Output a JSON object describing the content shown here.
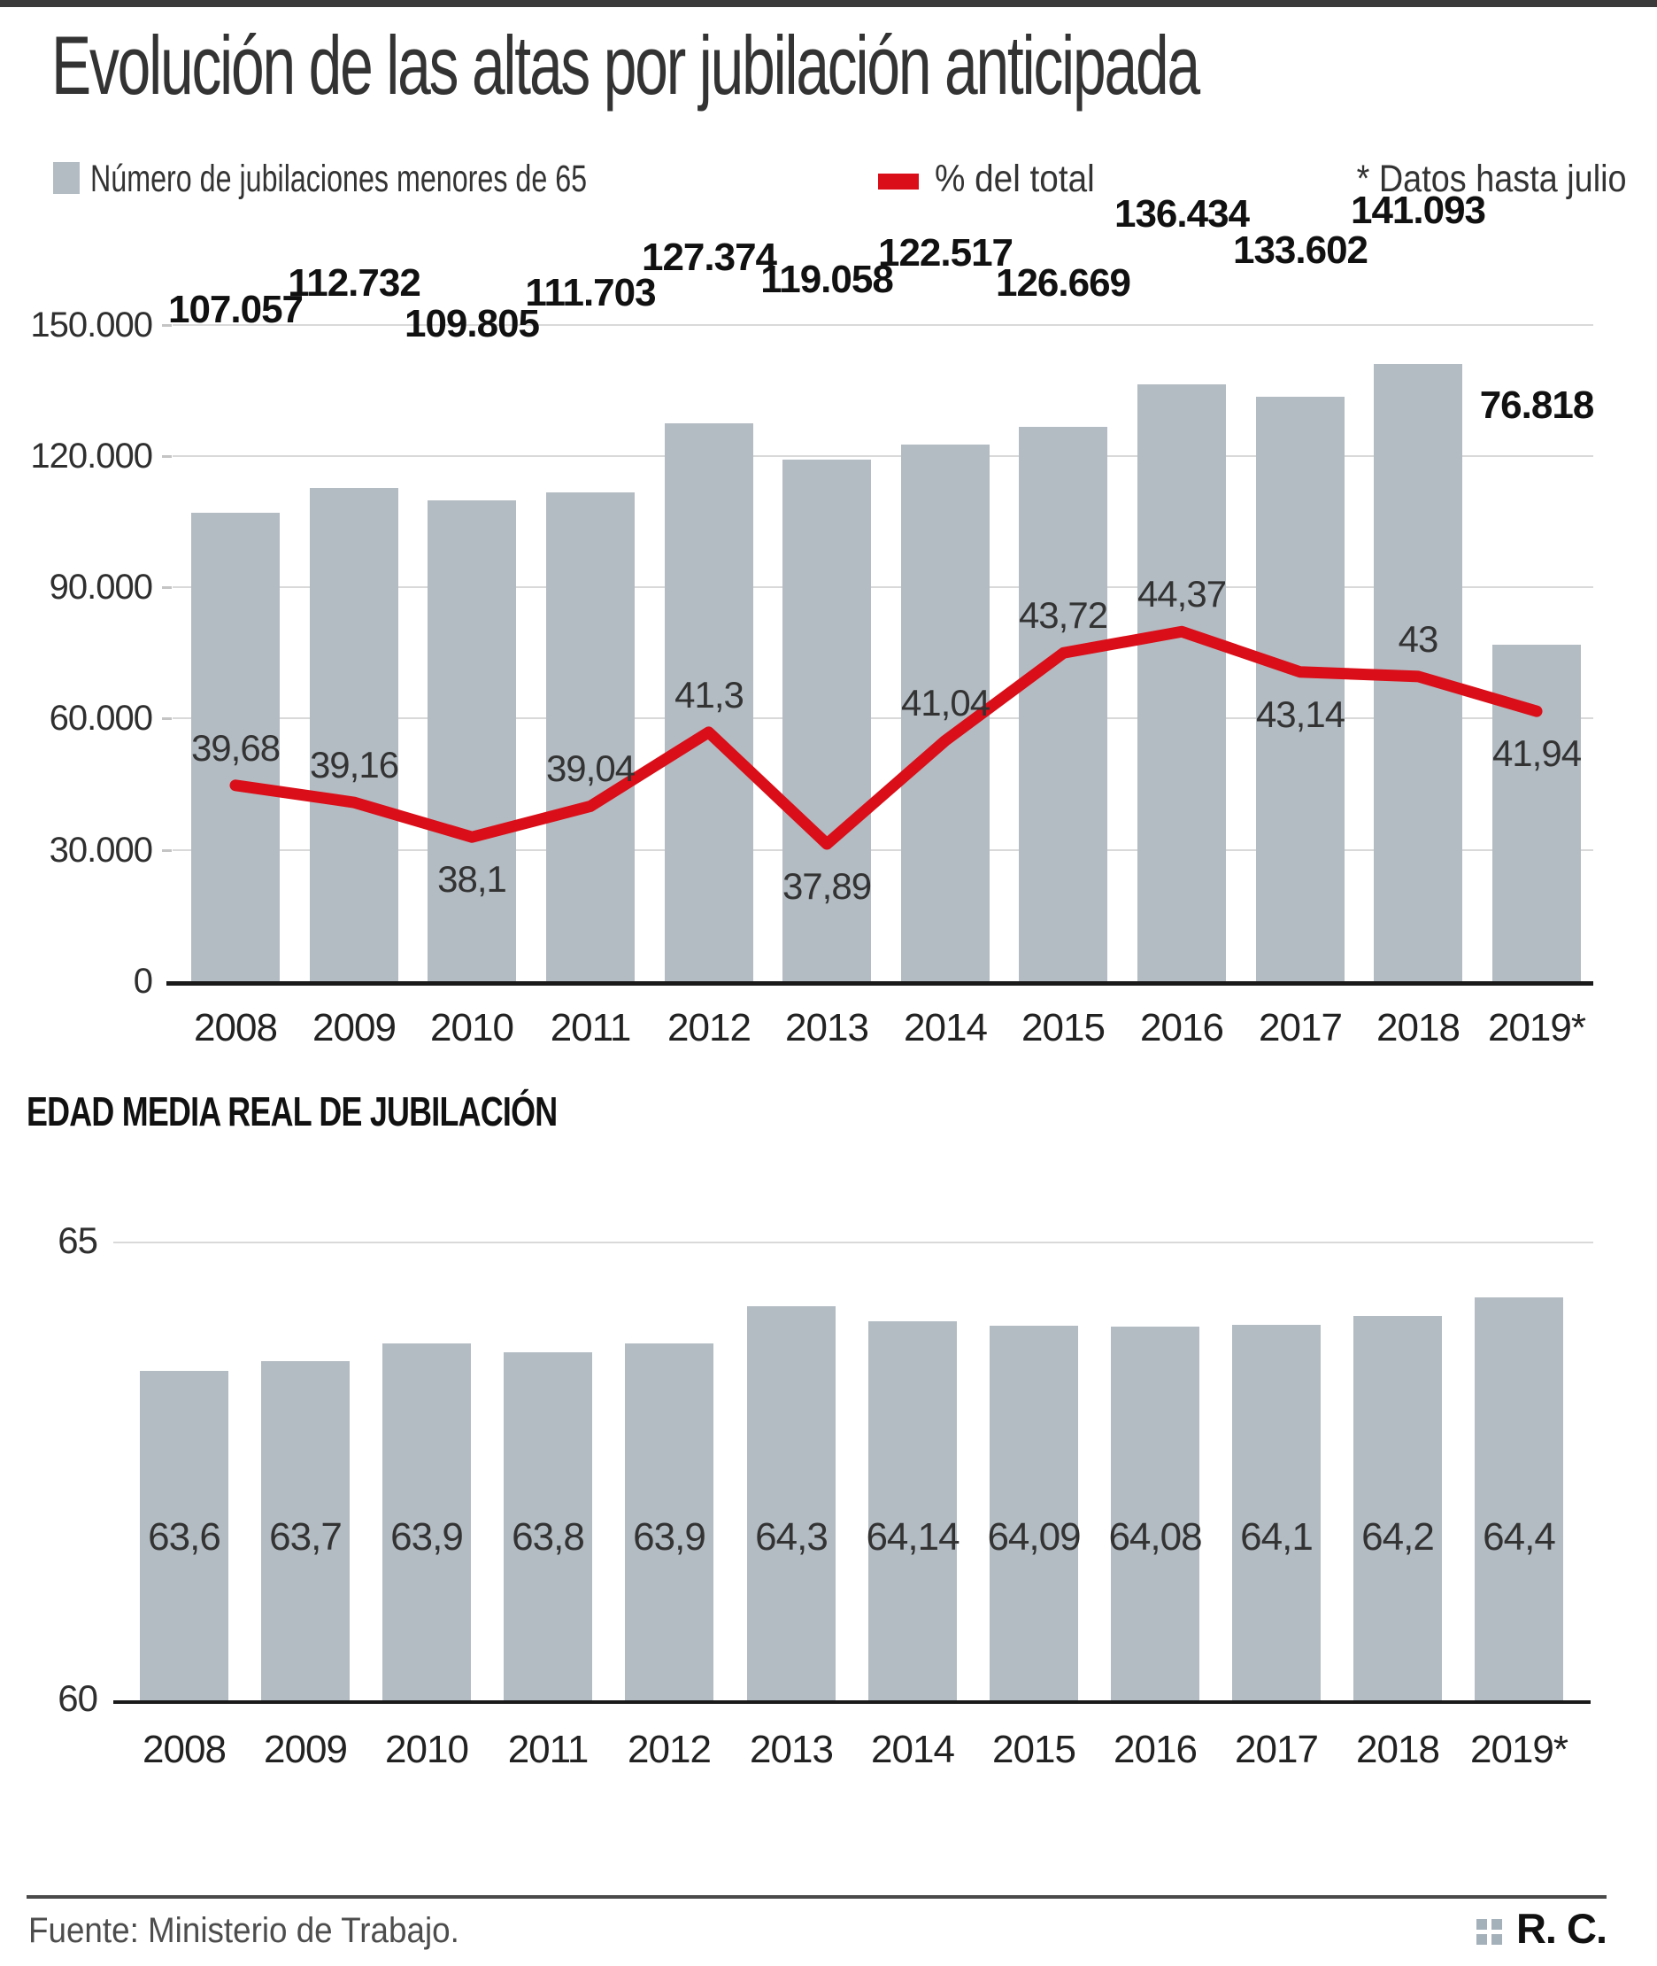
{
  "title": "Evolución de las altas por jubilación anticipada",
  "legend": {
    "bars_label": "Número de jubilaciones menores de 65",
    "line_label": "% del total",
    "note": "* Datos hasta julio"
  },
  "colors": {
    "bar": "#b3bcc3",
    "line": "#da0e18",
    "grid": "#d9d9d9",
    "axis": "#1a1a1a",
    "topbar": "#3a3a3a",
    "logo_dots": "#a5b1ba"
  },
  "chart_data": [
    {
      "type": "bar",
      "title": "Evolución de las altas por jubilación anticipada",
      "categories": [
        "2008",
        "2009",
        "2010",
        "2011",
        "2012",
        "2013",
        "2014",
        "2015",
        "2016",
        "2017",
        "2018",
        "2019*"
      ],
      "series": [
        {
          "name": "Número de jubilaciones menores de 65",
          "type": "bar",
          "values": [
            107057,
            112732,
            109805,
            111703,
            127374,
            119058,
            122517,
            126669,
            136434,
            133602,
            141093,
            76818
          ],
          "labels": [
            "107.057",
            "112.732",
            "109.805",
            "111.703",
            "127.374",
            "119.058",
            "122.517",
            "126.669",
            "136.434",
            "133.602",
            "141.093",
            "76.818"
          ]
        },
        {
          "name": "% del total",
          "type": "line",
          "values": [
            39.68,
            39.16,
            38.1,
            39.04,
            41.3,
            37.89,
            41.04,
            43.72,
            44.37,
            43.14,
            43,
            41.94
          ],
          "labels": [
            "39,68",
            "39,16",
            "38,1",
            "39,04",
            "41,3",
            "37,89",
            "41,04",
            "43,72",
            "44,37",
            "43,14",
            "43",
            "41,94"
          ]
        }
      ],
      "yticks": {
        "values": [
          150000,
          120000,
          90000,
          60000,
          30000,
          0
        ],
        "labels": [
          "150.000",
          "120.000",
          "90.000",
          "60.000",
          "30.000",
          "0"
        ]
      },
      "ylim": [
        0,
        150000
      ],
      "grid": true,
      "legend_position": "top",
      "note": "* Datos hasta julio"
    },
    {
      "type": "bar",
      "title": "EDAD MEDIA REAL DE JUBILACIÓN",
      "categories": [
        "2008",
        "2009",
        "2010",
        "2011",
        "2012",
        "2013",
        "2014",
        "2015",
        "2016",
        "2017",
        "2018",
        "2019*"
      ],
      "values": [
        63.6,
        63.7,
        63.9,
        63.8,
        63.9,
        64.3,
        64.14,
        64.09,
        64.08,
        64.1,
        64.2,
        64.4
      ],
      "labels": [
        "63,6",
        "63,7",
        "63,9",
        "63,8",
        "63,9",
        "64,3",
        "64,14",
        "64,09",
        "64,08",
        "64,1",
        "64,2",
        "64,4"
      ],
      "yticks": {
        "values": [
          65,
          60
        ],
        "labels": [
          "65",
          "60"
        ]
      },
      "ylim": [
        60,
        65
      ],
      "grid": true
    }
  ],
  "footer": {
    "source": "Fuente: Ministerio de Trabajo.",
    "credit": "R. C."
  }
}
